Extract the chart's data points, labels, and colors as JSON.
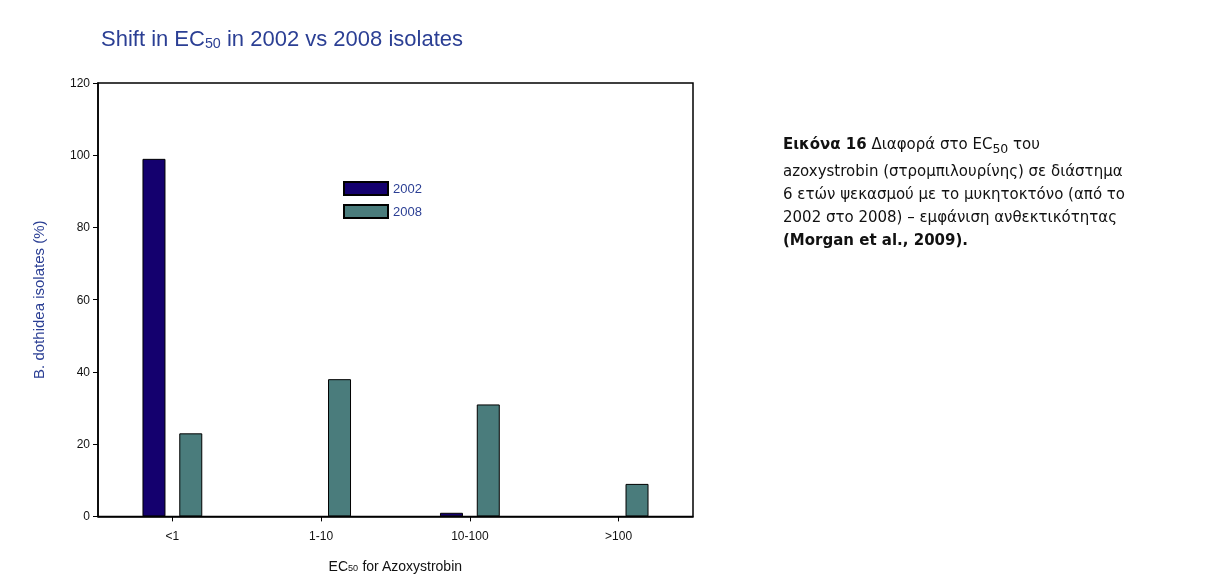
{
  "chart_data": {
    "type": "bar",
    "title": "Shift in EC$_{50}$ in 2002 vs 2008 isolates",
    "xlabel": "EC$_{50}$ for Azoxystrobin",
    "ylabel": "B. dothidea isolates (%)",
    "categories": [
      "<1",
      "1-10",
      "10-100",
      ">100"
    ],
    "series": [
      {
        "name": "2002",
        "color": "#14006e",
        "values": [
          99,
          null,
          1,
          null
        ]
      },
      {
        "name": "2008",
        "color": "#4a7c7c",
        "values": [
          23,
          38,
          31,
          9
        ]
      }
    ],
    "ylim": [
      0,
      120
    ],
    "yticks": [
      0,
      20,
      40,
      60,
      80,
      100,
      120
    ],
    "grid": false,
    "legend": "top",
    "annotations": [
      "Εικόνα 16",
      "Διαφορά στο EC$_{50}$ του azoxystrobin (στρομπιλουρίνης) σε διάστημα 6 ετών ψεκασμού με το μυκητοκτόνο (από το 2002 στο 2008) – εμφάνιση ανθεκτικότητας",
      "(Morgan et al., 2009)."
    ]
  }
}
